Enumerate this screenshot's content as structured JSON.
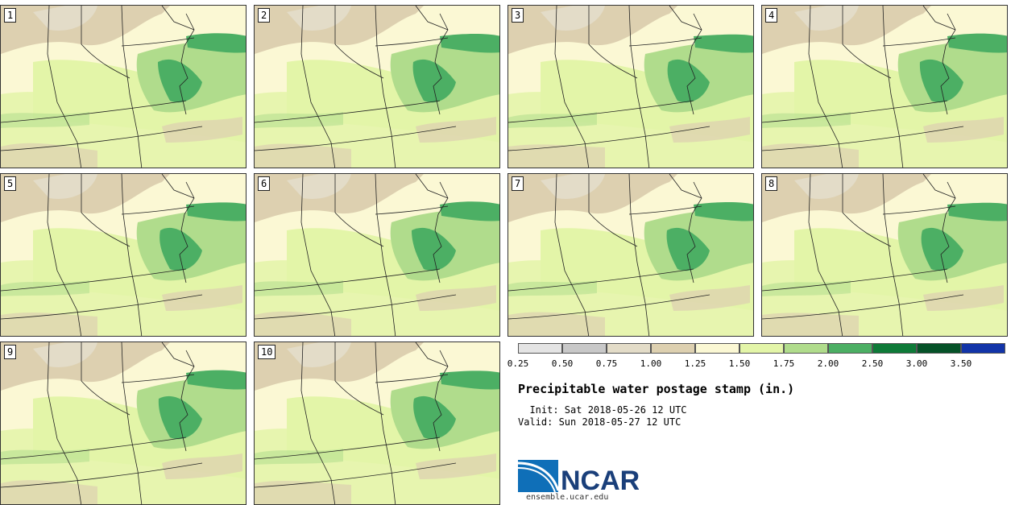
{
  "stamps": [
    "1",
    "2",
    "3",
    "4",
    "5",
    "6",
    "7",
    "8",
    "9",
    "10"
  ],
  "legend": {
    "ticks": [
      "0.25",
      "0.50",
      "0.75",
      "1.00",
      "1.25",
      "1.50",
      "1.75",
      "2.00",
      "2.50",
      "3.00",
      "3.50"
    ],
    "colors": [
      "#e4e4e4",
      "#c8c8c8",
      "#e3dcc8",
      "#ddd0b0",
      "#fbf8d4",
      "#e3f5a8",
      "#b0dc8c",
      "#4caf64",
      "#0e7a38",
      "#055228",
      "#1234a8"
    ]
  },
  "title": "Precipitable water postage stamp (in.)",
  "init": "  Init: Sat 2018-05-26 12 UTC",
  "valid": "Valid: Sun 2018-05-27 12 UTC",
  "logo": {
    "text": "NCAR",
    "url": "ensemble.ucar.edu"
  }
}
